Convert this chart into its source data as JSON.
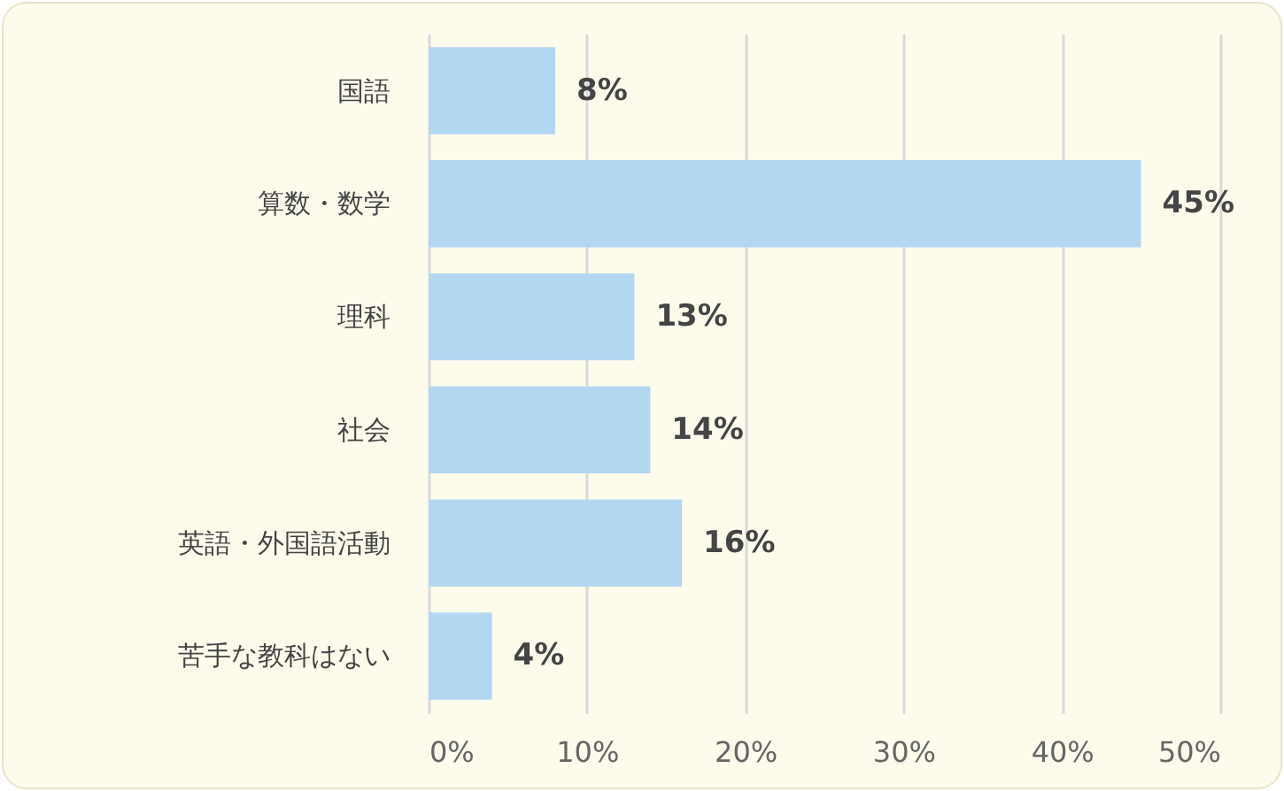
{
  "chart_data": {
    "type": "bar",
    "orientation": "horizontal",
    "categories": [
      "国語",
      "算数・数学",
      "理科",
      "社会",
      "英語・外国語活動",
      "苦手な教科はない"
    ],
    "values": [
      8,
      45,
      13,
      14,
      16,
      4
    ],
    "value_labels": [
      "8%",
      "45%",
      "13%",
      "14%",
      "16%",
      "4%"
    ],
    "color": "#b3d7f0",
    "xlim": [
      0,
      50
    ],
    "xticks": [
      {
        "value": 0,
        "label": "0%"
      },
      {
        "value": 10,
        "label": "10%"
      },
      {
        "value": 20,
        "label": "20%"
      },
      {
        "value": 30,
        "label": "30%"
      },
      {
        "value": 40,
        "label": "40%"
      },
      {
        "value": 50,
        "label": "50%"
      }
    ],
    "grid": "x"
  }
}
